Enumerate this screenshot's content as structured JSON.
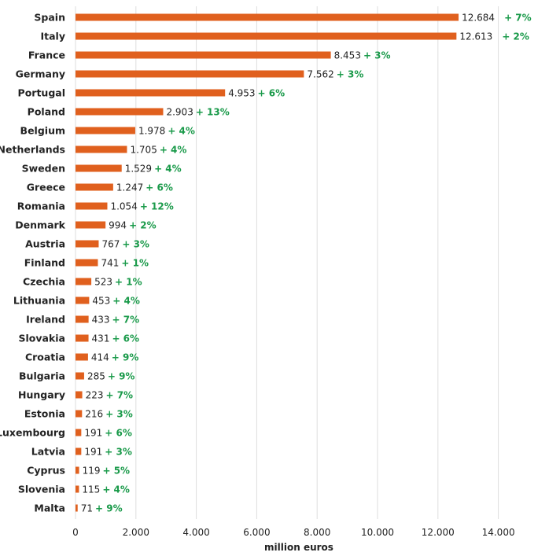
{
  "chart_data": {
    "type": "bar",
    "orientation": "horizontal",
    "categories": [
      "Spain",
      "Italy",
      "France",
      "Germany",
      "Portugal",
      "Poland",
      "Belgium",
      "Netherlands",
      "Sweden",
      "Greece",
      "Romania",
      "Denmark",
      "Austria",
      "Finland",
      "Czechia",
      "Lithuania",
      "Ireland",
      "Slovakia",
      "Croatia",
      "Bulgaria",
      "Hungary",
      "Estonia",
      "Luxembourg",
      "Latvia",
      "Cyprus",
      "Slovenia",
      "Malta"
    ],
    "values": [
      12684,
      12613,
      8453,
      7562,
      4953,
      2903,
      1978,
      1705,
      1529,
      1247,
      1054,
      994,
      767,
      741,
      523,
      453,
      433,
      431,
      414,
      285,
      223,
      216,
      191,
      191,
      119,
      115,
      71
    ],
    "value_labels": [
      "12.684",
      "12.613",
      "8.453",
      "7.562",
      "4.953",
      "2.903",
      "1.978",
      "1.705",
      "1.529",
      "1.247",
      "1.054",
      "994",
      "767",
      "741",
      "523",
      "453",
      "433",
      "431",
      "414",
      "285",
      "223",
      "216",
      "191",
      "191",
      "119",
      "115",
      "71"
    ],
    "change_labels": [
      "+ 7%",
      "+ 2%",
      "+ 3%",
      "+ 3%",
      "+ 6%",
      "+ 13%",
      "+ 4%",
      "+ 4%",
      "+ 4%",
      "+ 6%",
      "+ 12%",
      "+ 2%",
      "+ 3%",
      "+ 1%",
      "+ 1%",
      "+ 4%",
      "+ 7%",
      "+ 6%",
      "+ 9%",
      "+ 9%",
      "+ 7%",
      "+ 3%",
      "+ 6%",
      "+ 3%",
      "+ 5%",
      "+ 4%",
      "+ 9%"
    ],
    "xlim": [
      0,
      15000
    ],
    "x_ticks": [
      0,
      2000,
      4000,
      6000,
      8000,
      10000,
      12000,
      14000
    ],
    "x_tick_labels": [
      "0",
      "2.000",
      "4.000",
      "6.000",
      "8.000",
      "10.000",
      "12.000",
      "14.000"
    ],
    "xlabel": "million euros",
    "ylabel": "",
    "title": "",
    "grid": "vertical",
    "legend": "none",
    "bar_color": "#e0601e",
    "change_color": "#1a9a4a"
  }
}
